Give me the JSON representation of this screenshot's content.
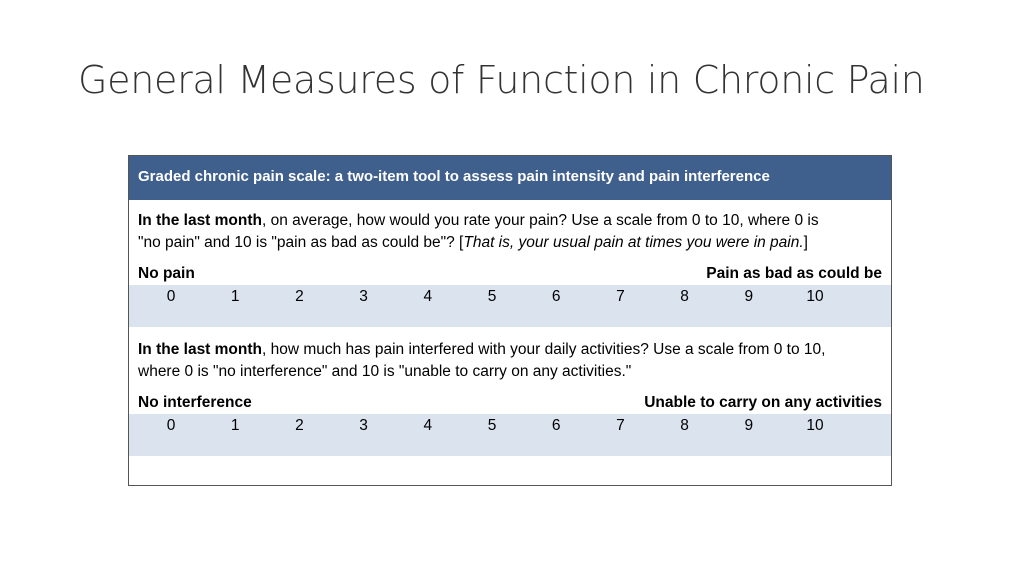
{
  "title": "General Measures of Function in Chronic Pain",
  "box": {
    "header": "Graded chronic pain scale: a two-item tool to assess pain intensity and pain interference",
    "q1": {
      "line1_bold": "In the last month",
      "line1_rest": ", on average, how would you rate your pain?  Use a scale from 0 to 10, where 0 is",
      "line2_start": "\"no pain\" and 10 is \"pain as bad as could be\"?  [",
      "line2_italic": "That is, your usual pain at times you were in pain.",
      "line2_end": "]",
      "anchor_left": "No pain",
      "anchor_right": "Pain as bad as could be"
    },
    "q2": {
      "line1_bold": "In the last month",
      "line1_rest": ", how much has pain interfered with your daily activities?  Use a scale from 0 to 10,",
      "line2": "where 0 is \"no interference\" and 10 is \"unable to carry on any activities.\"",
      "anchor_left": "No interference",
      "anchor_right": "Unable to carry on any activities"
    },
    "scale": [
      "0",
      "1",
      "2",
      "3",
      "4",
      "5",
      "6",
      "7",
      "8",
      "9",
      "10"
    ]
  },
  "colors": {
    "header_bg": "#3f5f8c",
    "scale_bg": "#dbe3ef"
  }
}
